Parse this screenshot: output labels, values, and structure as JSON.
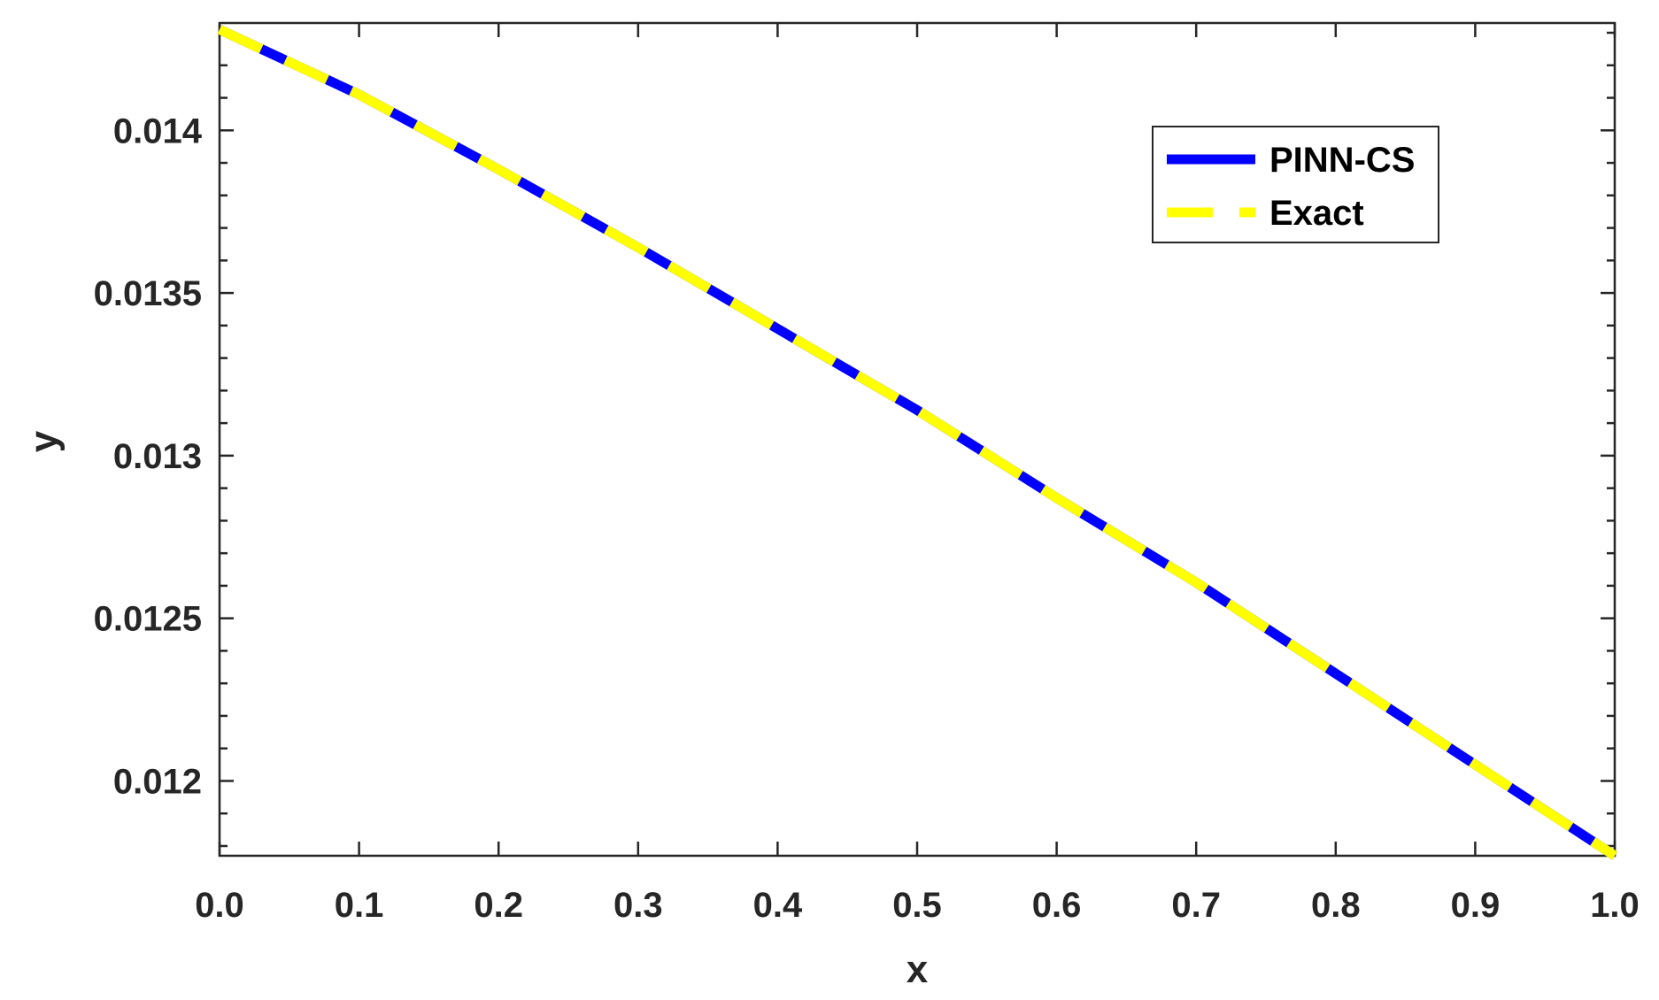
{
  "chart_data": {
    "type": "line",
    "xlabel": "x",
    "ylabel": "y",
    "xlim": [
      0,
      1
    ],
    "ylim": [
      0.01177,
      0.01433
    ],
    "x_ticks": [
      "0.0",
      "0.1",
      "0.2",
      "0.3",
      "0.4",
      "0.5",
      "0.6",
      "0.7",
      "0.8",
      "0.9",
      "1.0"
    ],
    "x_tick_values": [
      0,
      0.1,
      0.2,
      0.3,
      0.4,
      0.5,
      0.6,
      0.7,
      0.8,
      0.9,
      1.0
    ],
    "y_ticks": [
      "0.012",
      "0.0125",
      "0.013",
      "0.0135",
      "0.014"
    ],
    "y_tick_values": [
      0.012,
      0.0125,
      0.013,
      0.0135,
      0.014
    ],
    "grid": false,
    "legend_position": "top-right",
    "x": [
      0,
      0.1,
      0.2,
      0.3,
      0.4,
      0.5,
      0.6,
      0.7,
      0.8,
      0.9,
      1.0
    ],
    "series": [
      {
        "name": "PINN-CS",
        "color": "#0000ff",
        "style": "solid",
        "values": [
          0.01431,
          0.01411,
          0.01388,
          0.01364,
          0.01339,
          0.01314,
          0.01287,
          0.01261,
          0.01233,
          0.01205,
          0.01177
        ]
      },
      {
        "name": "Exact",
        "color": "#ffff00",
        "style": "dashed",
        "values": [
          0.01431,
          0.01411,
          0.01388,
          0.01364,
          0.01339,
          0.01314,
          0.01287,
          0.01261,
          0.01233,
          0.01205,
          0.01177
        ]
      }
    ]
  }
}
